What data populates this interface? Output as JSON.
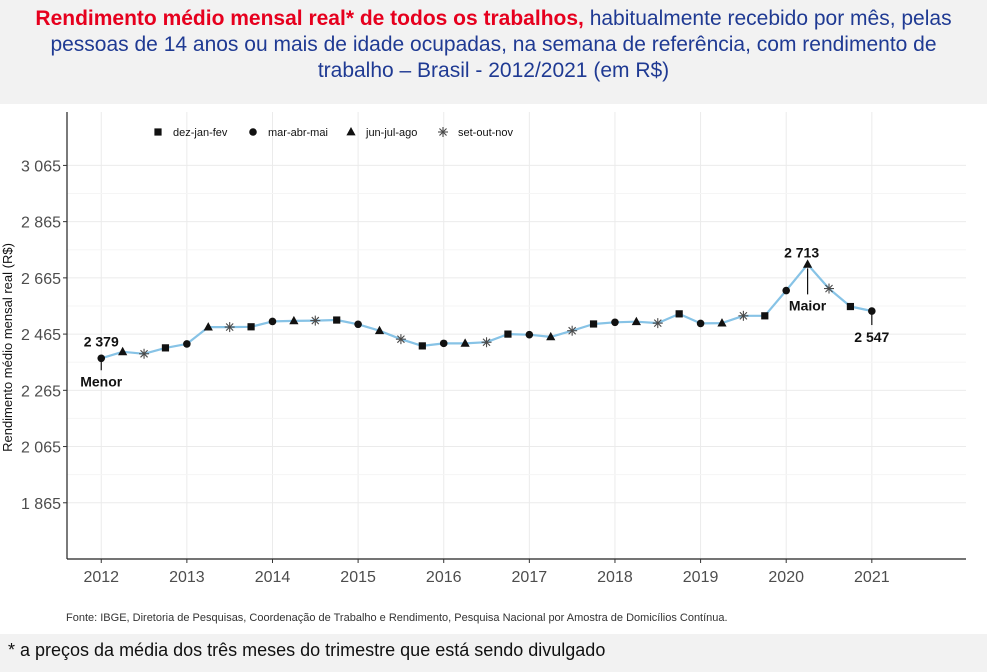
{
  "header": {
    "title_bold": "Rendimento médio mensal real* de todos os trabalhos,",
    "title_rest": "habitualmente recebido por mês, pelas pessoas de 14 anos ou mais de idade ocupadas, na semana de referência, com rendimento de trabalho – Brasil - 2012/2021 (em R$)"
  },
  "source": "Fonte: IBGE, Diretoria de Pesquisas, Coordenação de Trabalho e Rendimento, Pesquisa Nacional por Amostra de Domicílios Contínua.",
  "footnote": "* a preços da média dos três meses do trimestre que está sendo divulgado",
  "colors": {
    "line": "#87c3e6",
    "title_red": "#e6001e",
    "title_blue": "#1f3a93"
  },
  "chart_data": {
    "type": "line",
    "ylabel": "Rendimento médio mensal real (R$)",
    "xlabel": "",
    "ylim": [
      1665,
      3255
    ],
    "yticks": [
      1865,
      2065,
      2265,
      2465,
      2665,
      2865,
      3065
    ],
    "ytick_labels": [
      "1 865",
      "2 065",
      "2 265",
      "2 465",
      "2 665",
      "2 865",
      "3 065"
    ],
    "xlim": [
      2011.6,
      2022.1
    ],
    "xticks": [
      2012,
      2013,
      2014,
      2015,
      2016,
      2017,
      2018,
      2019,
      2020,
      2021
    ],
    "xtick_labels": [
      "2012",
      "2013",
      "2014",
      "2015",
      "2016",
      "2017",
      "2018",
      "2019",
      "2020",
      "2021"
    ],
    "legend": {
      "position": "top-left",
      "items": [
        {
          "label": "dez-jan-fev",
          "marker": "square"
        },
        {
          "label": "mar-abr-mai",
          "marker": "circle"
        },
        {
          "label": "jun-jul-ago",
          "marker": "triangle"
        },
        {
          "label": "set-out-nov",
          "marker": "asterisk"
        }
      ]
    },
    "series": [
      {
        "name": "Rendimento médio mensal real",
        "points": [
          {
            "x": 2012.0,
            "y": 2379,
            "marker": "circle"
          },
          {
            "x": 2012.25,
            "y": 2402,
            "marker": "triangle"
          },
          {
            "x": 2012.5,
            "y": 2395,
            "marker": "asterisk"
          },
          {
            "x": 2012.75,
            "y": 2416,
            "marker": "square"
          },
          {
            "x": 2013.0,
            "y": 2430,
            "marker": "circle"
          },
          {
            "x": 2013.25,
            "y": 2490,
            "marker": "triangle"
          },
          {
            "x": 2013.5,
            "y": 2490,
            "marker": "asterisk"
          },
          {
            "x": 2013.75,
            "y": 2491,
            "marker": "square"
          },
          {
            "x": 2014.0,
            "y": 2510,
            "marker": "circle"
          },
          {
            "x": 2014.25,
            "y": 2512,
            "marker": "triangle"
          },
          {
            "x": 2014.5,
            "y": 2513,
            "marker": "asterisk"
          },
          {
            "x": 2014.75,
            "y": 2515,
            "marker": "square"
          },
          {
            "x": 2015.0,
            "y": 2500,
            "marker": "circle"
          },
          {
            "x": 2015.25,
            "y": 2477,
            "marker": "triangle"
          },
          {
            "x": 2015.5,
            "y": 2447,
            "marker": "asterisk"
          },
          {
            "x": 2015.75,
            "y": 2423,
            "marker": "square"
          },
          {
            "x": 2016.0,
            "y": 2432,
            "marker": "circle"
          },
          {
            "x": 2016.25,
            "y": 2432,
            "marker": "triangle"
          },
          {
            "x": 2016.5,
            "y": 2436,
            "marker": "asterisk"
          },
          {
            "x": 2016.75,
            "y": 2465,
            "marker": "square"
          },
          {
            "x": 2017.0,
            "y": 2463,
            "marker": "circle"
          },
          {
            "x": 2017.25,
            "y": 2455,
            "marker": "triangle"
          },
          {
            "x": 2017.5,
            "y": 2477,
            "marker": "asterisk"
          },
          {
            "x": 2017.75,
            "y": 2501,
            "marker": "square"
          },
          {
            "x": 2018.0,
            "y": 2507,
            "marker": "circle"
          },
          {
            "x": 2018.25,
            "y": 2509,
            "marker": "triangle"
          },
          {
            "x": 2018.5,
            "y": 2504,
            "marker": "asterisk"
          },
          {
            "x": 2018.75,
            "y": 2537,
            "marker": "square"
          },
          {
            "x": 2019.0,
            "y": 2503,
            "marker": "circle"
          },
          {
            "x": 2019.25,
            "y": 2504,
            "marker": "triangle"
          },
          {
            "x": 2019.5,
            "y": 2530,
            "marker": "asterisk"
          },
          {
            "x": 2019.75,
            "y": 2530,
            "marker": "square"
          },
          {
            "x": 2020.0,
            "y": 2620,
            "marker": "circle"
          },
          {
            "x": 2020.25,
            "y": 2713,
            "marker": "triangle"
          },
          {
            "x": 2020.5,
            "y": 2627,
            "marker": "asterisk"
          },
          {
            "x": 2020.75,
            "y": 2563,
            "marker": "square"
          },
          {
            "x": 2021.0,
            "y": 2547,
            "marker": "circle"
          }
        ]
      }
    ],
    "annotations": [
      {
        "value_label": "2 379",
        "tag": "Menor",
        "x": 2012.0,
        "y": 2379
      },
      {
        "value_label": "2 713",
        "tag": "Maior",
        "x": 2020.25,
        "y": 2713
      },
      {
        "value_label": "2 547",
        "tag": "",
        "x": 2021.0,
        "y": 2547
      }
    ]
  }
}
